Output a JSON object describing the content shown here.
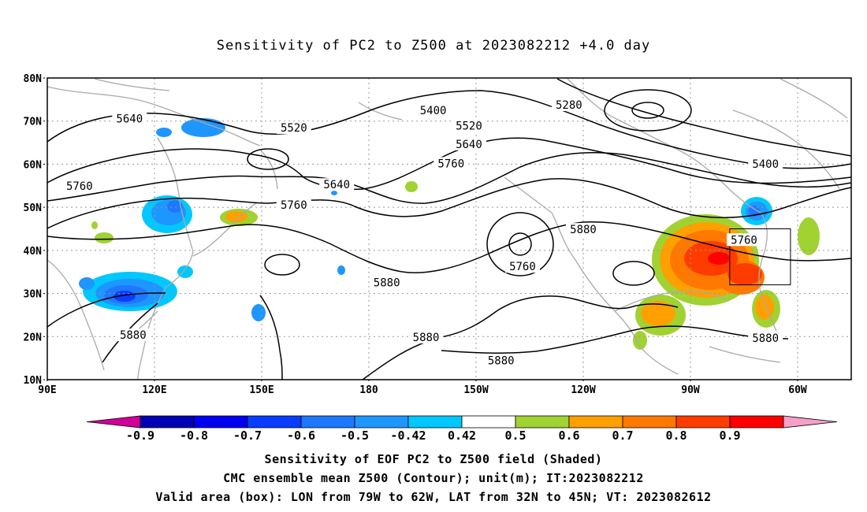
{
  "title": "Sensitivity of PC2 to Z500 at 2023082212 +4.0 day",
  "map": {
    "lat_labels": [
      "80N",
      "70N",
      "60N",
      "50N",
      "40N",
      "30N",
      "20N",
      "10N"
    ],
    "lon_labels": [
      "90E",
      "120E",
      "150E",
      "180",
      "150W",
      "120W",
      "90W",
      "60W"
    ],
    "contour_labels": [
      {
        "text": "5400",
        "lon": 198,
        "lat": 72.3
      },
      {
        "text": "5280",
        "lon": 236,
        "lat": 73.6
      },
      {
        "text": "5640",
        "lon": 113,
        "lat": 70.4
      },
      {
        "text": "5520",
        "lon": 159,
        "lat": 68.3
      },
      {
        "text": "5520",
        "lon": 208,
        "lat": 68.8
      },
      {
        "text": "5640",
        "lon": 208,
        "lat": 64.5
      },
      {
        "text": "5760",
        "lon": 203,
        "lat": 60
      },
      {
        "text": "5400",
        "lon": 291,
        "lat": 59.9
      },
      {
        "text": "5640",
        "lon": 171,
        "lat": 55.1
      },
      {
        "text": "5760",
        "lon": 99,
        "lat": 54.8
      },
      {
        "text": "5760",
        "lon": 159,
        "lat": 50.4
      },
      {
        "text": "5880",
        "lon": 240,
        "lat": 44.7
      },
      {
        "text": "5760",
        "lon": 285,
        "lat": 42.3
      },
      {
        "text": "5760",
        "lon": 223,
        "lat": 36.1
      },
      {
        "text": "5880",
        "lon": 185,
        "lat": 32.4
      },
      {
        "text": "5880",
        "lon": 114,
        "lat": 20.2
      },
      {
        "text": "5880",
        "lon": 196,
        "lat": 19.7
      },
      {
        "text": "5880",
        "lon": 217,
        "lat": 14.3
      },
      {
        "text": "5880",
        "lon": 291,
        "lat": 19.5
      }
    ],
    "valid_box": {
      "lon_w": 281,
      "lon_e": 298,
      "lat_s": 32,
      "lat_n": 45
    }
  },
  "colorbar": {
    "labels": [
      "-0.9",
      "-0.8",
      "-0.7",
      "-0.6",
      "-0.5",
      "-0.42",
      "0.42",
      "0.5",
      "0.6",
      "0.7",
      "0.8",
      "0.9"
    ],
    "colors": [
      "#d00096",
      "#0000b4",
      "#0000f0",
      "#0a3cff",
      "#1e78ff",
      "#1e96ff",
      "#00c8ff",
      "#ffffff",
      "#a0d232",
      "#ffa000",
      "#ff7800",
      "#ff3c00",
      "#ff0000",
      "#f5a0c8"
    ]
  },
  "captions": [
    "Sensitivity of EOF PC2 to Z500 field (Shaded)",
    "CMC ensemble mean Z500 (Contour); unit(m); IT:2023082212",
    "Valid area (box): LON from 79W to 62W, LAT from 32N to 45N; VT: 2023082612"
  ]
}
